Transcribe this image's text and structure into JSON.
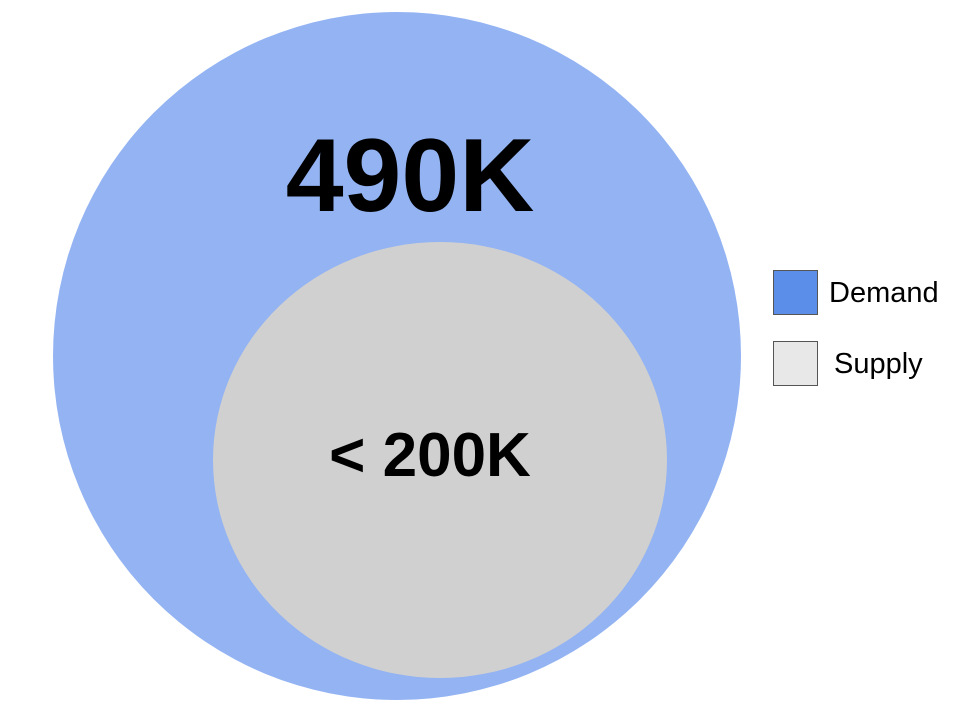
{
  "colors": {
    "demand_fill": "#93b3f3",
    "demand_swatch": "#5b8ee8",
    "supply_fill": "#d0d0d0",
    "supply_swatch": "#e8e8e8",
    "text": "#000000"
  },
  "diagram": {
    "outer_label": "490K",
    "inner_label": "< 200K"
  },
  "legend": {
    "items": [
      {
        "label": "Demand"
      },
      {
        "label": "Supply"
      }
    ]
  }
}
